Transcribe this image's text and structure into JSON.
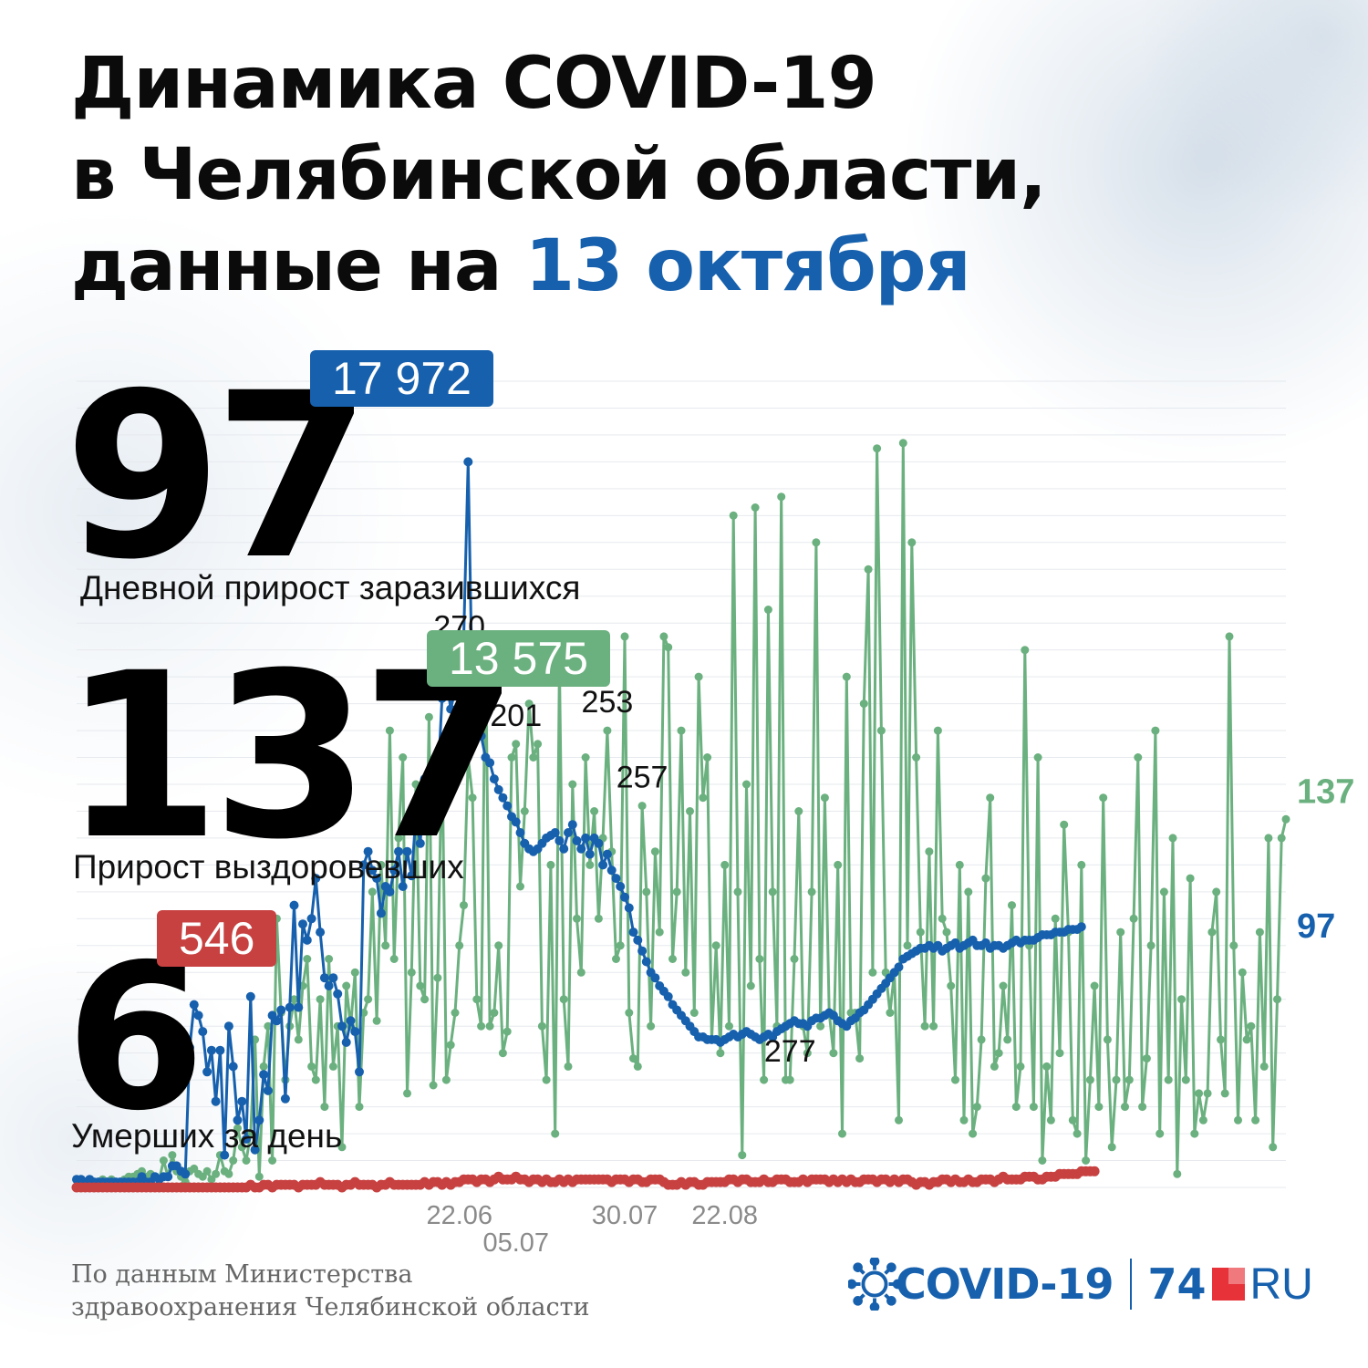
{
  "title": {
    "line1": "Динамика COVID-19",
    "line2": "в Челябинской области,",
    "line3_prefix": "данные на ",
    "line3_accent": "13 октября"
  },
  "stats": {
    "cases": {
      "value": "97",
      "total": "17 972",
      "label": "Дневной прирост заразившихся"
    },
    "recovered": {
      "value": "137",
      "total": "13 575",
      "label": "Прирост выздоровевших"
    },
    "deaths": {
      "value": "6",
      "total": "546",
      "label": "Умерших за день"
    }
  },
  "footer": {
    "source_line1": "По данным Министерства",
    "source_line2": "здравоохранения Челябинской области",
    "logo_covid": "COVID-19",
    "logo_74": "74",
    "logo_ru": "RU"
  },
  "colors": {
    "accent": "#1660ad",
    "cases": "#1660ad",
    "recovered": "#6bb07f",
    "deaths": "#c84141"
  },
  "icons": [
    "virus-icon",
    "logo-square-icon"
  ],
  "chart_data": {
    "type": "line",
    "title": "",
    "xlabel": "",
    "ylabel": "",
    "grid": true,
    "ylim": [
      0,
      300
    ],
    "x_ticks": [
      {
        "label": "22.06",
        "index": 150
      },
      {
        "label": "05.07",
        "index": 163
      },
      {
        "label": "30.07",
        "index": 188
      },
      {
        "label": "22.08",
        "index": 211
      }
    ],
    "peak_labels": [
      {
        "text": "270",
        "series": "cases",
        "index": 150
      },
      {
        "text": "201",
        "series": "recovered",
        "index": 163
      },
      {
        "text": "253",
        "series": "recovered",
        "index": 184
      },
      {
        "text": "257",
        "series": "recovered",
        "index": 192
      },
      {
        "text": "277",
        "series": "recovered",
        "index": 226
      }
    ],
    "end_labels": [
      {
        "text": "137",
        "series": "recovered"
      },
      {
        "text": "97",
        "series": "cases"
      }
    ],
    "start_index": 62,
    "series": [
      {
        "key": "cases",
        "values": [
          3,
          3,
          2,
          3,
          2,
          2,
          2,
          2,
          2,
          2,
          2,
          2,
          2,
          2,
          2,
          4,
          2,
          2,
          4,
          3,
          4,
          4,
          8,
          8,
          6,
          5,
          52,
          68,
          64,
          58,
          43,
          51,
          32,
          51,
          12,
          60,
          45,
          25,
          32,
          18,
          71,
          14,
          25,
          42,
          36,
          64,
          62,
          66,
          33,
          67,
          105,
          67,
          98,
          92,
          100,
          115,
          95,
          78,
          75,
          78,
          72,
          60,
          54,
          62,
          58,
          43,
          120,
          125,
          118,
          115,
          102,
          112,
          110,
          118,
          125,
          112,
          125,
          116,
          138,
          128,
          152,
          145,
          138,
          150,
          182,
          190,
          178,
          185,
          198,
          205,
          270,
          180,
          176,
          168,
          160,
          158,
          152,
          148,
          145,
          142,
          138,
          136,
          132,
          128,
          126,
          125,
          126,
          128,
          130,
          131,
          132,
          129,
          126,
          132,
          135,
          129,
          126,
          130,
          124,
          130,
          128,
          120,
          124,
          118,
          115,
          112,
          108,
          104,
          95,
          92,
          88,
          84,
          80,
          78,
          75,
          73,
          71,
          68,
          66,
          64,
          62,
          60,
          58,
          56,
          56,
          55,
          55,
          55,
          54,
          55,
          56,
          57,
          56,
          57,
          58,
          57,
          56,
          55,
          56,
          57,
          56,
          58,
          59,
          60,
          61,
          62,
          61,
          61,
          60,
          62,
          63,
          63,
          64,
          65,
          64,
          62,
          61,
          60,
          62,
          63,
          65,
          66,
          68,
          70,
          72,
          74,
          76,
          78,
          80,
          82,
          85,
          86,
          87,
          88,
          89,
          89,
          90,
          89,
          90,
          88,
          89,
          90,
          91,
          89,
          90,
          91,
          92,
          90,
          90,
          91,
          89,
          90,
          90,
          89,
          90,
          91,
          92,
          91,
          92,
          92,
          92,
          93,
          94,
          94,
          94,
          95,
          95,
          95,
          96,
          96,
          96,
          97
        ]
      },
      {
        "key": "recovered",
        "values": [
          3,
          3,
          2,
          2,
          2,
          2,
          3,
          2,
          3,
          2,
          2,
          3,
          4,
          4,
          5,
          6,
          4,
          5,
          4,
          3,
          10,
          4,
          12,
          6,
          4,
          2,
          6,
          7,
          5,
          4,
          6,
          3,
          5,
          12,
          6,
          5,
          10,
          22,
          15,
          10,
          20,
          55,
          4,
          45,
          60,
          10,
          100,
          65,
          40,
          60,
          70,
          55,
          75,
          85,
          45,
          40,
          70,
          30,
          85,
          45,
          60,
          15,
          75,
          60,
          80,
          30,
          65,
          70,
          110,
          62,
          120,
          90,
          170,
          85,
          130,
          160,
          35,
          80,
          150,
          75,
          70,
          175,
          38,
          78,
          165,
          40,
          53,
          65,
          90,
          105,
          160,
          145,
          70,
          60,
          205,
          60,
          65,
          90,
          50,
          58,
          160,
          165,
          112,
          140,
          180,
          160,
          165,
          60,
          40,
          120,
          20,
          195,
          70,
          45,
          150,
          100,
          80,
          160,
          120,
          140,
          100,
          130,
          170,
          125,
          85,
          90,
          205,
          65,
          48,
          45,
          142,
          110,
          60,
          125,
          95,
          205,
          201,
          85,
          110,
          170,
          80,
          140,
          65,
          190,
          145,
          160,
          55,
          90,
          50,
          120,
          60,
          250,
          110,
          12,
          150,
          75,
          253,
          85,
          40,
          215,
          110,
          60,
          257,
          40,
          40,
          85,
          140,
          60,
          50,
          110,
          240,
          60,
          145,
          65,
          50,
          120,
          20,
          190,
          65,
          65,
          48,
          180,
          230,
          80,
          275,
          170,
          80,
          65,
          80,
          25,
          277,
          90,
          240,
          160,
          95,
          60,
          125,
          60,
          170,
          100,
          95,
          75,
          40,
          120,
          25,
          110,
          20,
          30,
          55,
          115,
          145,
          45,
          50,
          75,
          55,
          105,
          30,
          45,
          200,
          90,
          30,
          160,
          10,
          45,
          25,
          100,
          50,
          135,
          95,
          25,
          20,
          120,
          10,
          40,
          75,
          30,
          145,
          55,
          15,
          40,
          95,
          30,
          40,
          100,
          160,
          30,
          48,
          90,
          170,
          20,
          110,
          40,
          130,
          5,
          70,
          40,
          115,
          20,
          35,
          25,
          35,
          95,
          110,
          55,
          35,
          205,
          90,
          25,
          80,
          55,
          60,
          25,
          95,
          45,
          130,
          15,
          70,
          130,
          137
        ]
      },
      {
        "key": "deaths",
        "values": [
          0,
          0,
          0,
          0,
          0,
          0,
          0,
          0,
          0,
          0,
          0,
          0,
          0,
          0,
          0,
          0,
          0,
          0,
          0,
          0,
          0,
          0,
          0,
          0,
          0,
          0,
          0,
          0,
          0,
          0,
          0,
          0,
          0,
          0,
          0,
          0,
          0,
          0,
          0,
          0,
          1,
          0,
          0,
          1,
          1,
          0,
          1,
          1,
          1,
          1,
          1,
          0,
          1,
          1,
          1,
          1,
          2,
          1,
          1,
          1,
          1,
          0,
          1,
          1,
          2,
          1,
          1,
          1,
          1,
          0,
          1,
          1,
          2,
          1,
          1,
          1,
          1,
          1,
          1,
          1,
          2,
          1,
          2,
          2,
          1,
          2,
          1,
          2,
          2,
          3,
          3,
          3,
          2,
          3,
          3,
          2,
          3,
          4,
          3,
          3,
          3,
          4,
          3,
          3,
          2,
          3,
          3,
          2,
          3,
          2,
          2,
          3,
          2,
          3,
          2,
          3,
          3,
          3,
          3,
          3,
          3,
          3,
          3,
          2,
          3,
          3,
          3,
          2,
          3,
          3,
          2,
          2,
          3,
          3,
          3,
          2,
          1,
          1,
          1,
          2,
          1,
          2,
          2,
          1,
          1,
          2,
          2,
          2,
          2,
          2,
          3,
          3,
          2,
          3,
          3,
          2,
          2,
          2,
          3,
          2,
          2,
          3,
          3,
          3,
          2,
          2,
          2,
          3,
          2,
          3,
          3,
          3,
          3,
          2,
          3,
          2,
          3,
          2,
          3,
          2,
          2,
          3,
          3,
          3,
          2,
          3,
          3,
          2,
          3,
          2,
          3,
          3,
          2,
          1,
          2,
          2,
          1,
          2,
          2,
          3,
          3,
          2,
          3,
          2,
          2,
          3,
          2,
          2,
          3,
          3,
          3,
          2,
          3,
          4,
          3,
          3,
          3,
          3,
          4,
          4,
          4,
          3,
          3,
          4,
          4,
          4,
          5,
          5,
          5,
          5,
          5,
          6,
          6,
          6,
          6
        ]
      }
    ]
  }
}
